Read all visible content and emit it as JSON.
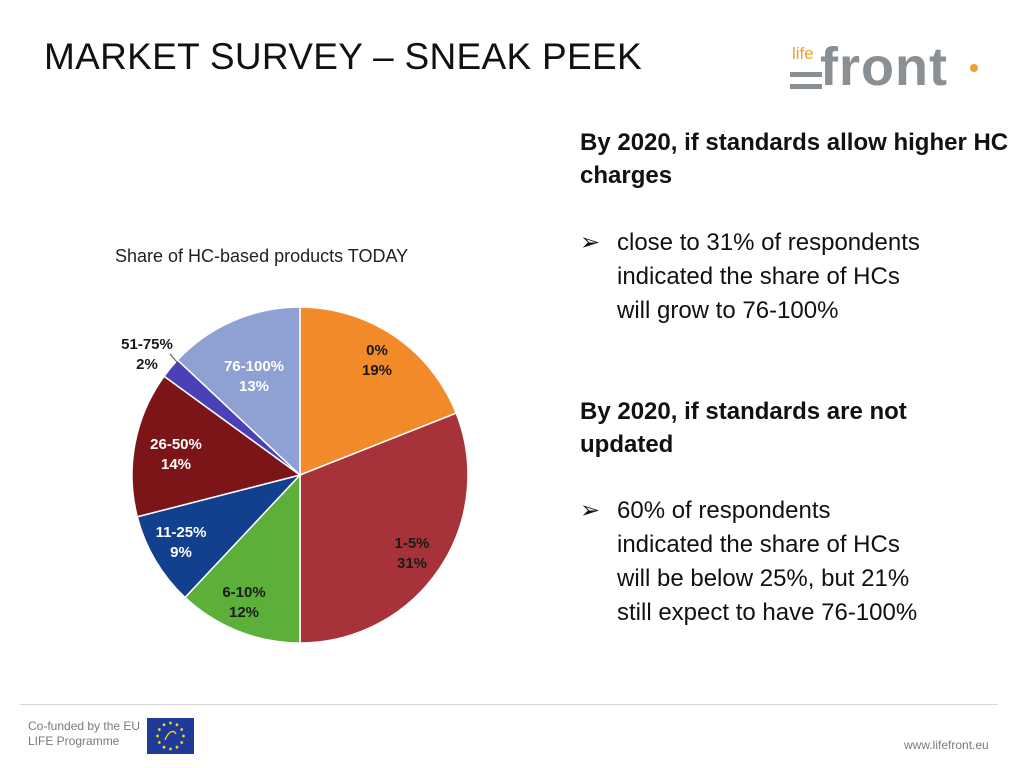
{
  "header": {
    "title": "MARKET SURVEY – SNEAK PEEK"
  },
  "logo": {
    "small": "life",
    "big": "front"
  },
  "right_panel": {
    "heading1": "By 2020, if standards allow higher HC charges",
    "bullet1": "close to 31% of respondents indicated the share of HCs will grow to 76-100%",
    "heading2": "By 2020, if standards are not updated",
    "bullet2": "60% of respondents indicated the share of HCs will be below 25%, but 21% still expect to have 76-100%"
  },
  "footer": {
    "cofunded_line1": "Co-funded by the EU",
    "cofunded_line2": "LIFE Programme",
    "url": "www.lifefront.eu"
  },
  "chart_data": {
    "type": "pie",
    "title": "Share of HC-based products TODAY",
    "slices": [
      {
        "label": "0%",
        "pct_label": "19%",
        "value": 19,
        "color": "#f28a2a"
      },
      {
        "label": "1-5%",
        "pct_label": "31%",
        "value": 31,
        "color": "#a8323a"
      },
      {
        "label": "6-10%",
        "pct_label": "12%",
        "value": 12,
        "color": "#5cb039"
      },
      {
        "label": "11-25%",
        "pct_label": "9%",
        "value": 9,
        "color": "#123f8e"
      },
      {
        "label": "26-50%",
        "pct_label": "14%",
        "value": 14,
        "color": "#7c1518"
      },
      {
        "label": "51-75%",
        "pct_label": "2%",
        "value": 2,
        "color": "#4a40b8"
      },
      {
        "label": "76-100%",
        "pct_label": "13%",
        "value": 13,
        "color": "#8fa0d2"
      }
    ]
  }
}
